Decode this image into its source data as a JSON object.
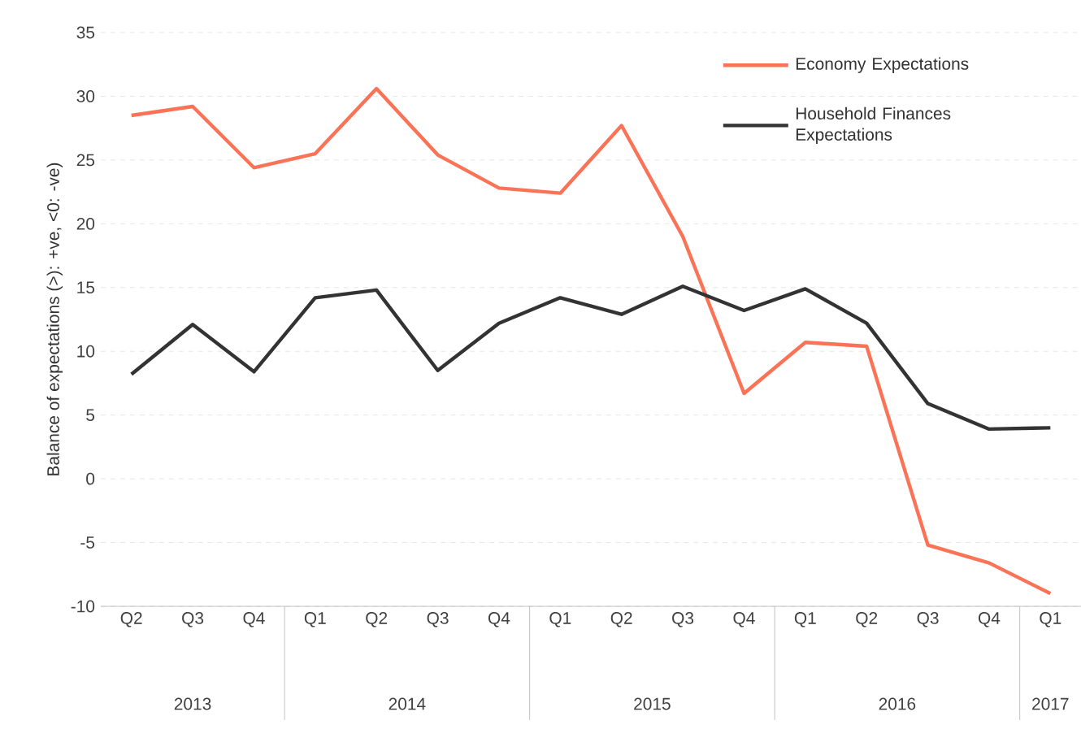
{
  "chart_data": {
    "type": "line",
    "ylabel": "Balance of expectations (>): +ve, <0: -ve)",
    "categories": [
      "Q2",
      "Q3",
      "Q4",
      "Q1",
      "Q2",
      "Q3",
      "Q4",
      "Q1",
      "Q2",
      "Q3",
      "Q4",
      "Q1",
      "Q2",
      "Q3",
      "Q4",
      "Q1"
    ],
    "annotations": [
      "2013",
      "2014",
      "2015",
      "2016",
      "2017"
    ],
    "series": [
      {
        "name": "Economy Expectations",
        "color": "#fb7356",
        "values": [
          28.5,
          29.2,
          24.4,
          25.5,
          30.6,
          25.4,
          22.8,
          22.4,
          27.7,
          19.0,
          6.7,
          10.7,
          10.4,
          -5.2,
          -6.6,
          -9.0
        ]
      },
      {
        "name": "Household Finances Expectations",
        "color": "#333333",
        "values": [
          8.2,
          12.1,
          8.4,
          14.2,
          14.8,
          8.5,
          12.2,
          14.2,
          12.9,
          15.1,
          13.2,
          14.9,
          12.2,
          5.9,
          3.9,
          4.0
        ]
      }
    ],
    "ylim": [
      -10,
      35
    ],
    "yticks": [
      -10,
      -5,
      0,
      5,
      10,
      15,
      20,
      25,
      30,
      35
    ],
    "grid": "y",
    "legend": "top right",
    "marker": "none",
    "line_style": "solid"
  }
}
